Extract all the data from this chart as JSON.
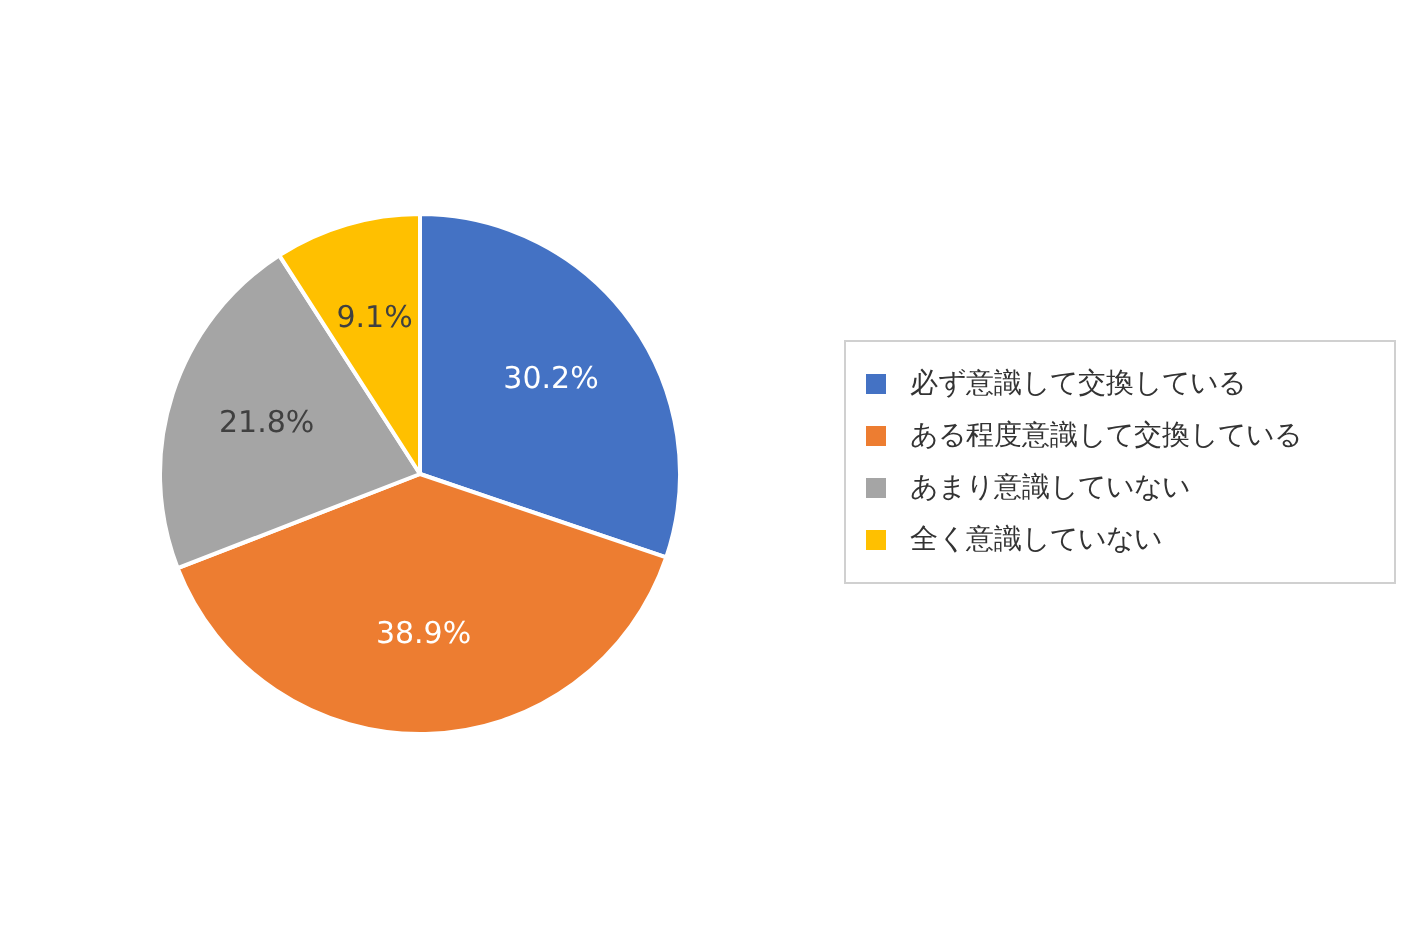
{
  "chart_data": {
    "type": "pie",
    "categories": [
      "必ず意識して交換している",
      "ある程度意識して交換している",
      "あまり意識していない",
      "全く意識していない"
    ],
    "values": [
      30.2,
      38.9,
      21.8,
      9.1
    ],
    "colors": [
      "#4472c4",
      "#ed7d31",
      "#a5a5a5",
      "#ffc000"
    ],
    "value_labels": [
      "30.2%",
      "38.9%",
      "21.8%",
      "9.1%"
    ],
    "legend": "right"
  }
}
